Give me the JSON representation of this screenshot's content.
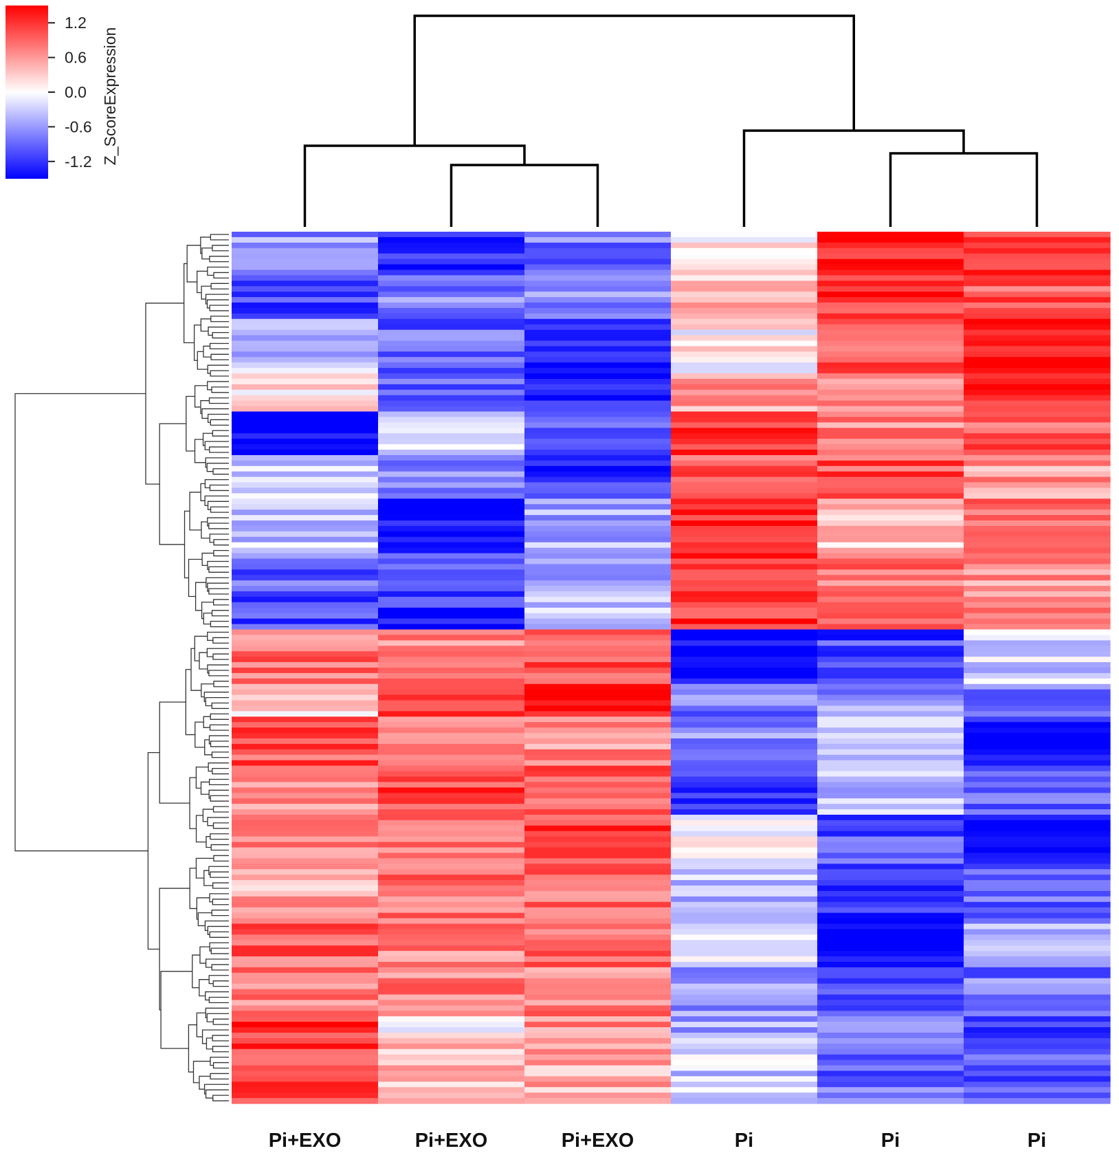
{
  "chart_data": {
    "type": "heatmap",
    "title": "",
    "xlabel": "",
    "ylabel": "",
    "columns": [
      "Pi+EXO",
      "Pi+EXO",
      "Pi+EXO",
      "Pi",
      "Pi",
      "Pi"
    ],
    "row_count": 160,
    "row_dendrogram": true,
    "column_dendrogram": true,
    "colorbar": {
      "title": "Z_ScoreExpression",
      "ticks": [
        "1.2",
        "0.6",
        "0.0",
        "-0.6",
        "-1.2"
      ],
      "range": [
        -1.5,
        1.5
      ],
      "colors": {
        "low": "#0000ff",
        "mid": "#ffffff",
        "high": "#ff0000"
      },
      "placement": "top-left"
    },
    "row_blocks": [
      {
        "rows": 8,
        "values": [
          -0.6,
          -1.3,
          -0.8,
          0.2,
          1.3,
          1.1
        ]
      },
      {
        "rows": 8,
        "values": [
          -1.1,
          -0.7,
          -0.6,
          0.4,
          1.2,
          1.0
        ]
      },
      {
        "rows": 10,
        "values": [
          -0.4,
          -0.9,
          -1.3,
          0.1,
          1.0,
          1.3
        ]
      },
      {
        "rows": 7,
        "values": [
          0.1,
          -1.0,
          -1.4,
          0.6,
          0.8,
          1.2
        ]
      },
      {
        "rows": 8,
        "values": [
          -1.4,
          -0.3,
          -0.9,
          1.1,
          0.7,
          0.9
        ]
      },
      {
        "rows": 8,
        "values": [
          -0.4,
          -0.8,
          -1.2,
          1.0,
          1.0,
          0.6
        ]
      },
      {
        "rows": 10,
        "values": [
          -0.3,
          -1.5,
          -0.5,
          1.2,
          0.4,
          0.9
        ]
      },
      {
        "rows": 8,
        "values": [
          -0.9,
          -1.0,
          -0.6,
          1.1,
          0.8,
          0.6
        ]
      },
      {
        "rows": 6,
        "values": [
          -1.1,
          -1.2,
          -0.4,
          1.2,
          0.8,
          1.0
        ]
      },
      {
        "rows": 10,
        "values": [
          0.8,
          0.7,
          1.0,
          -1.5,
          -1.1,
          -0.3
        ]
      },
      {
        "rows": 6,
        "values": [
          0.2,
          1.2,
          1.3,
          -0.8,
          -0.6,
          -0.8
        ]
      },
      {
        "rows": 9,
        "values": [
          1.0,
          0.8,
          0.7,
          -0.7,
          -0.2,
          -1.4
        ]
      },
      {
        "rows": 9,
        "values": [
          0.6,
          1.1,
          0.9,
          -1.1,
          -0.4,
          -1.0
        ]
      },
      {
        "rows": 10,
        "values": [
          0.6,
          0.9,
          1.1,
          -0.1,
          -1.0,
          -1.4
        ]
      },
      {
        "rows": 10,
        "values": [
          0.5,
          0.8,
          0.9,
          -0.4,
          -1.3,
          -0.9
        ]
      },
      {
        "rows": 8,
        "values": [
          0.9,
          0.7,
          0.8,
          -0.3,
          -1.5,
          -0.4
        ]
      },
      {
        "rows": 9,
        "values": [
          0.8,
          0.7,
          0.7,
          -0.6,
          -1.2,
          -0.8
        ]
      },
      {
        "rows": 5,
        "values": [
          1.2,
          0.1,
          0.6,
          -0.5,
          -0.7,
          -1.1
        ]
      },
      {
        "rows": 11,
        "values": [
          1.1,
          0.4,
          0.5,
          -0.3,
          -0.9,
          -1.0
        ]
      }
    ]
  }
}
